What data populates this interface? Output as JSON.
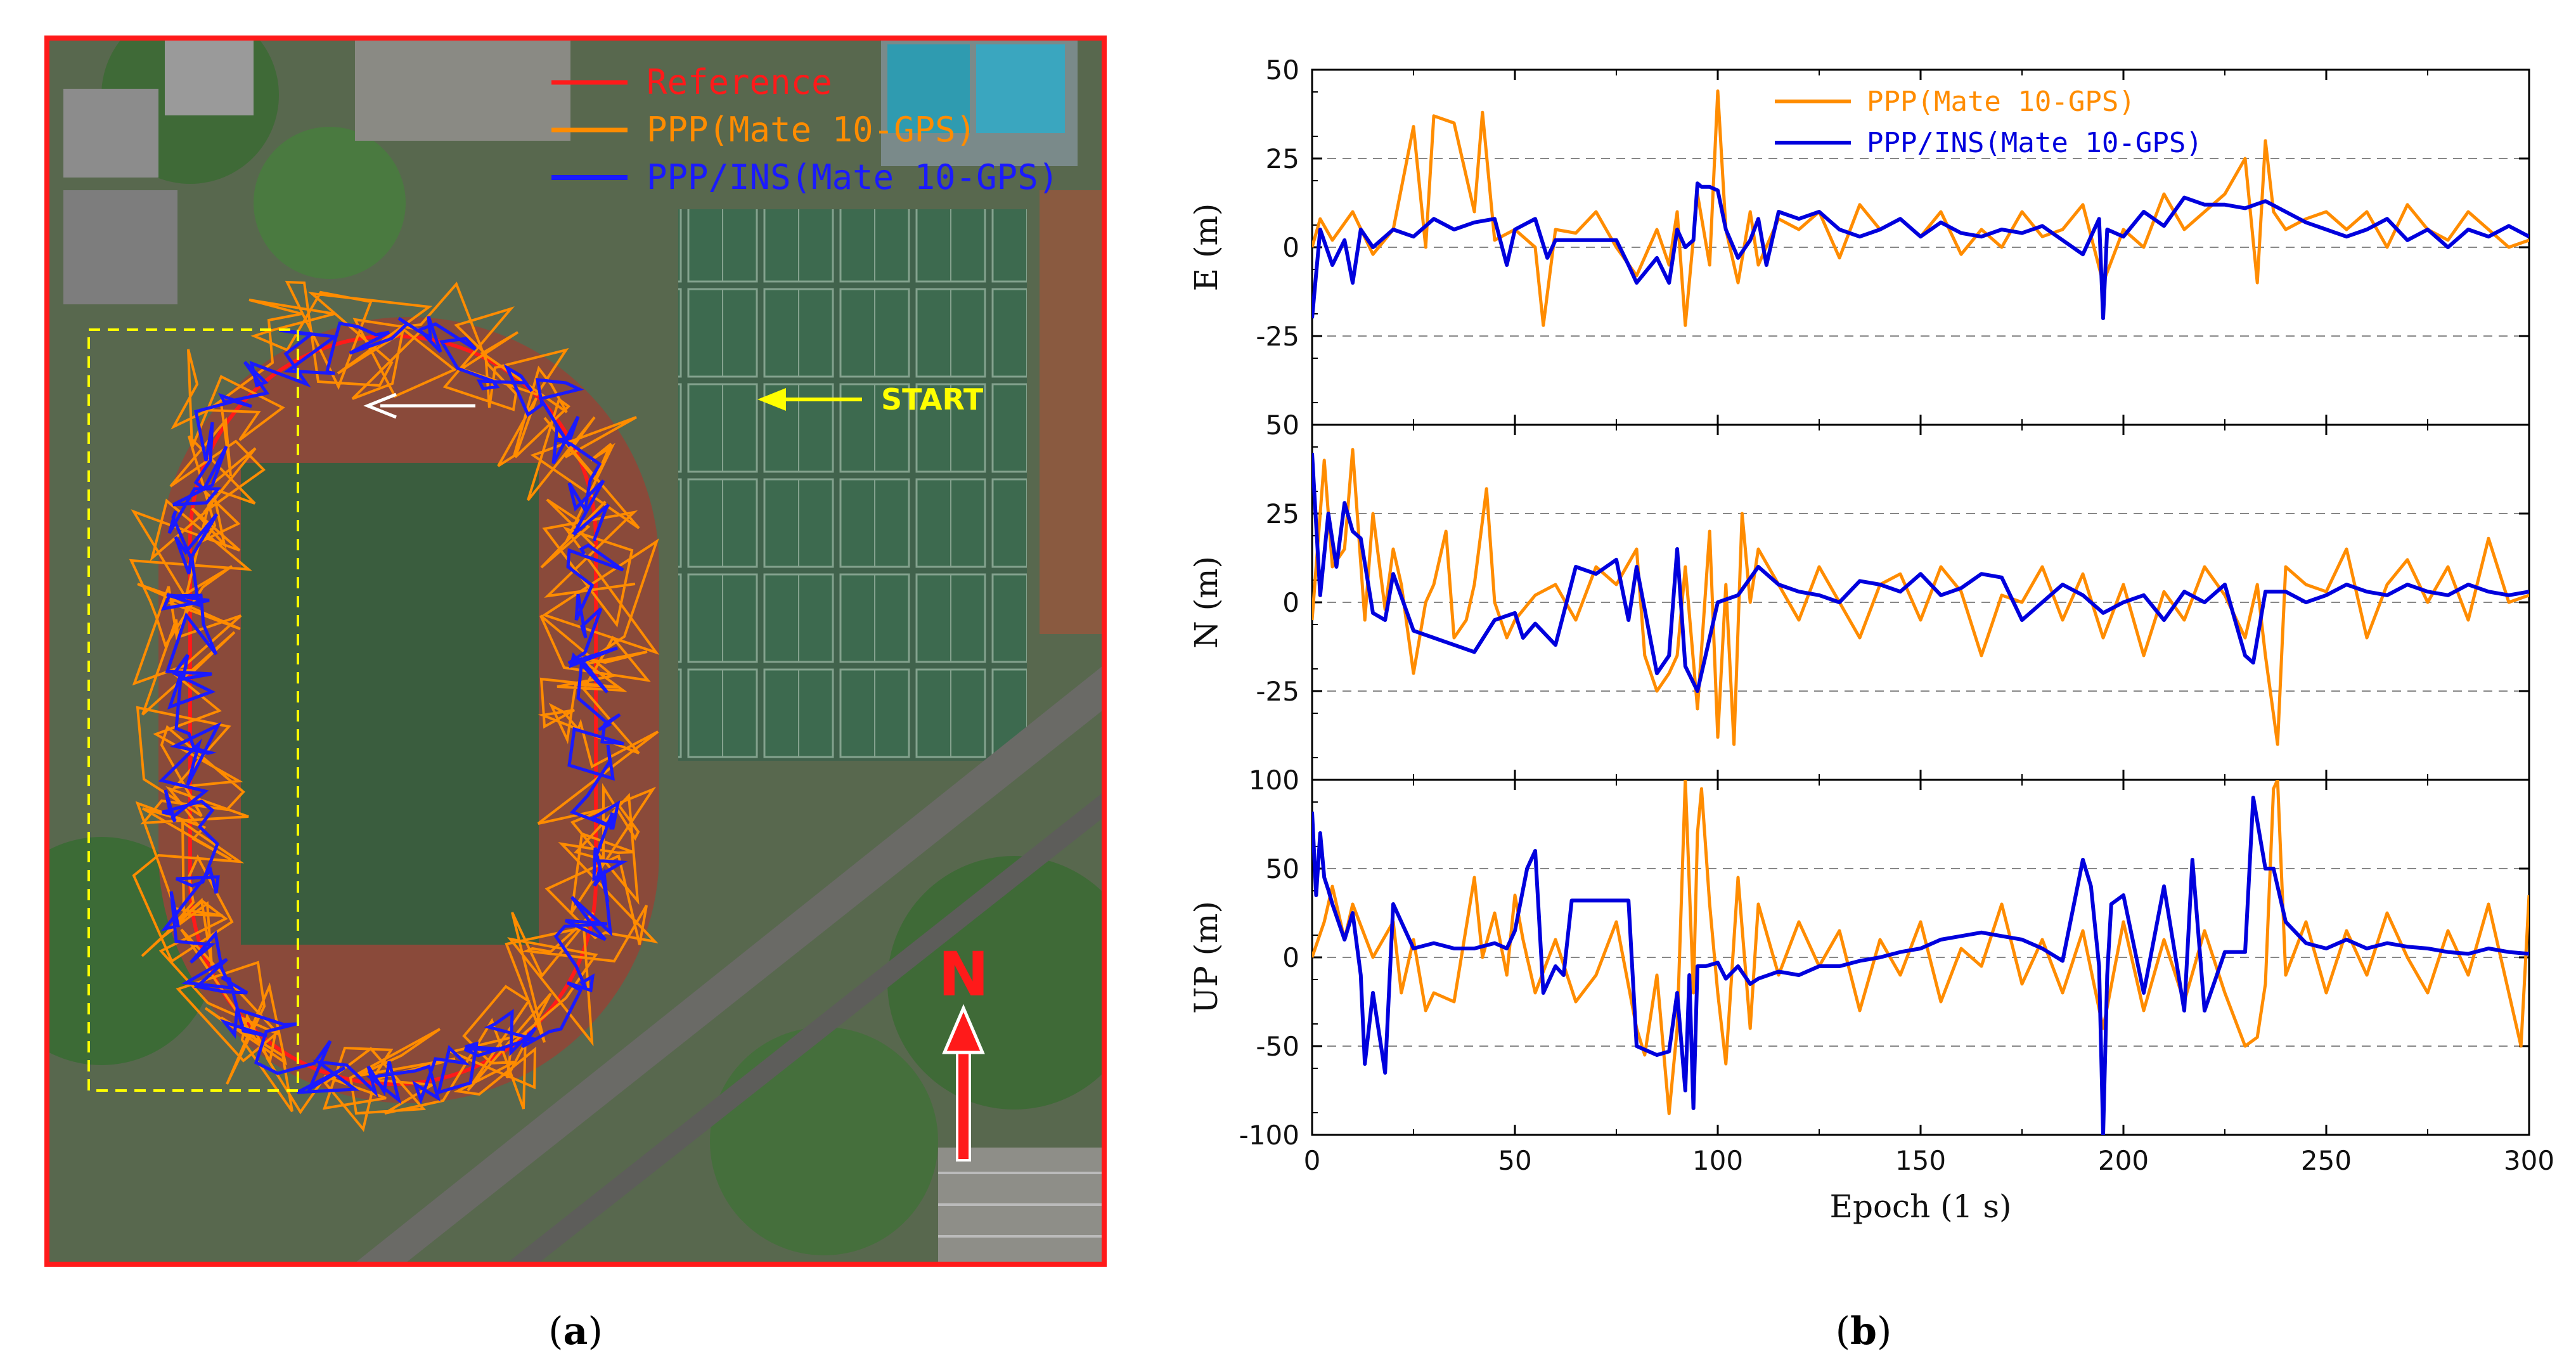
{
  "panel_a": {
    "label_letter": "a",
    "legend": [
      {
        "name": "Reference",
        "color": "#ff1a1a"
      },
      {
        "name": "PPP(Mate 10-GPS)",
        "color": "#ff8c00"
      },
      {
        "name": "PPP/INS(Mate 10-GPS)",
        "color": "#1a1aff"
      }
    ],
    "start_label": "START",
    "north_label": "N"
  },
  "panel_b": {
    "label_letter": "b"
  },
  "chart_data": [
    {
      "type": "line",
      "title": "",
      "ylabel": "E (m)",
      "xlabel": "",
      "xlim": [
        0,
        300
      ],
      "ylim": [
        -50,
        50
      ],
      "yticks": [
        "50",
        "25",
        "0",
        "-25",
        ""
      ],
      "grid_lines": [
        25,
        0,
        -25
      ],
      "series": [
        {
          "name": "PPP(Mate 10-GPS)",
          "color": "#ff8c00",
          "x": [
            0,
            2,
            5,
            10,
            15,
            20,
            25,
            28,
            30,
            35,
            40,
            42,
            45,
            50,
            55,
            57,
            60,
            65,
            70,
            75,
            80,
            85,
            88,
            90,
            92,
            95,
            98,
            100,
            102,
            105,
            108,
            110,
            115,
            120,
            125,
            130,
            135,
            140,
            145,
            150,
            155,
            160,
            165,
            170,
            175,
            180,
            185,
            190,
            195,
            200,
            205,
            210,
            215,
            220,
            225,
            230,
            233,
            235,
            237,
            240,
            245,
            250,
            255,
            260,
            265,
            270,
            275,
            280,
            285,
            290,
            295,
            300
          ],
          "y": [
            0,
            8,
            2,
            10,
            -2,
            5,
            34,
            0,
            37,
            35,
            10,
            38,
            2,
            5,
            0,
            -22,
            5,
            4,
            10,
            0,
            -8,
            5,
            -5,
            10,
            -22,
            15,
            -5,
            44,
            5,
            -10,
            10,
            -5,
            8,
            5,
            10,
            -3,
            12,
            5,
            8,
            3,
            10,
            -2,
            5,
            0,
            10,
            3,
            5,
            12,
            -10,
            5,
            0,
            15,
            5,
            10,
            15,
            25,
            -10,
            30,
            10,
            5,
            8,
            10,
            5,
            10,
            0,
            12,
            5,
            2,
            10,
            5,
            0,
            2
          ]
        },
        {
          "name": "PPP/INS(Mate 10-GPS)",
          "color": "#0000dd",
          "x": [
            0,
            2,
            5,
            8,
            10,
            12,
            15,
            20,
            25,
            30,
            35,
            40,
            45,
            48,
            50,
            55,
            58,
            60,
            65,
            70,
            75,
            78,
            80,
            85,
            88,
            90,
            92,
            94,
            95,
            96,
            98,
            100,
            102,
            105,
            108,
            110,
            112,
            115,
            120,
            125,
            130,
            135,
            140,
            145,
            150,
            155,
            160,
            165,
            170,
            175,
            180,
            185,
            190,
            194,
            195,
            196,
            200,
            205,
            210,
            215,
            220,
            225,
            230,
            235,
            240,
            245,
            250,
            255,
            260,
            265,
            270,
            275,
            280,
            285,
            290,
            295,
            300
          ],
          "y": [
            -20,
            5,
            -5,
            2,
            -10,
            5,
            0,
            5,
            3,
            8,
            5,
            7,
            8,
            -5,
            5,
            8,
            -3,
            2,
            2,
            2,
            2,
            -5,
            -10,
            -3,
            -10,
            5,
            0,
            2,
            18,
            17,
            17,
            16,
            5,
            -3,
            2,
            8,
            -5,
            10,
            8,
            10,
            5,
            3,
            5,
            8,
            3,
            7,
            4,
            3,
            5,
            4,
            6,
            2,
            -2,
            8,
            -20,
            5,
            3,
            10,
            6,
            14,
            12,
            12,
            11,
            13,
            10,
            7,
            5,
            3,
            5,
            8,
            2,
            5,
            0,
            5,
            3,
            6,
            3
          ]
        }
      ]
    },
    {
      "type": "line",
      "title": "",
      "ylabel": "N (m)",
      "xlabel": "",
      "xlim": [
        0,
        300
      ],
      "ylim": [
        -50,
        50
      ],
      "yticks": [
        "50",
        "25",
        "0",
        "-25",
        ""
      ],
      "grid_lines": [
        25,
        0,
        -25
      ],
      "series": [
        {
          "name": "PPP(Mate 10-GPS)",
          "color": "#ff8c00",
          "x": [
            0,
            3,
            5,
            8,
            10,
            13,
            15,
            18,
            20,
            22,
            25,
            28,
            30,
            33,
            35,
            38,
            40,
            43,
            45,
            48,
            50,
            55,
            60,
            65,
            70,
            75,
            80,
            82,
            85,
            88,
            90,
            92,
            95,
            98,
            100,
            102,
            104,
            106,
            108,
            110,
            115,
            120,
            125,
            130,
            135,
            140,
            145,
            150,
            155,
            160,
            165,
            170,
            175,
            180,
            185,
            190,
            195,
            200,
            205,
            210,
            215,
            220,
            225,
            230,
            233,
            235,
            238,
            240,
            245,
            250,
            255,
            260,
            265,
            270,
            275,
            280,
            285,
            290,
            295,
            300
          ],
          "y": [
            -5,
            40,
            10,
            15,
            43,
            -5,
            25,
            -2,
            15,
            5,
            -20,
            0,
            5,
            20,
            -10,
            -5,
            5,
            32,
            0,
            -10,
            -5,
            2,
            5,
            -5,
            10,
            5,
            15,
            -15,
            -25,
            -20,
            -15,
            10,
            -30,
            20,
            -38,
            5,
            -40,
            25,
            0,
            15,
            5,
            -5,
            10,
            0,
            -10,
            5,
            8,
            -5,
            10,
            3,
            -15,
            2,
            0,
            10,
            -5,
            8,
            -10,
            5,
            -15,
            3,
            -5,
            10,
            2,
            -10,
            5,
            -15,
            -40,
            10,
            5,
            3,
            15,
            -10,
            5,
            12,
            0,
            10,
            -5,
            18,
            0,
            2
          ]
        },
        {
          "name": "PPP/INS(Mate 10-GPS)",
          "color": "#0000dd",
          "x": [
            0,
            2,
            4,
            6,
            8,
            10,
            12,
            15,
            18,
            20,
            25,
            30,
            35,
            40,
            45,
            50,
            52,
            55,
            60,
            65,
            70,
            75,
            78,
            80,
            85,
            88,
            90,
            92,
            95,
            98,
            100,
            105,
            110,
            115,
            120,
            125,
            130,
            135,
            140,
            145,
            150,
            155,
            160,
            165,
            170,
            175,
            180,
            185,
            190,
            195,
            200,
            205,
            210,
            215,
            220,
            225,
            230,
            232,
            235,
            240,
            245,
            250,
            255,
            260,
            265,
            270,
            275,
            280,
            285,
            290,
            295,
            300
          ],
          "y": [
            42,
            2,
            25,
            10,
            28,
            20,
            18,
            -3,
            -5,
            8,
            -8,
            -10,
            -12,
            -14,
            -5,
            -3,
            -10,
            -6,
            -12,
            10,
            8,
            12,
            -5,
            10,
            -20,
            -15,
            15,
            -18,
            -25,
            -10,
            0,
            2,
            10,
            5,
            3,
            2,
            0,
            6,
            5,
            3,
            8,
            2,
            4,
            8,
            7,
            -5,
            0,
            5,
            2,
            -3,
            0,
            2,
            -5,
            3,
            0,
            5,
            -15,
            -17,
            3,
            3,
            0,
            2,
            5,
            3,
            2,
            5,
            3,
            2,
            5,
            3,
            2,
            3
          ]
        }
      ]
    },
    {
      "type": "line",
      "title": "",
      "ylabel": "UP (m)",
      "xlabel": "Epoch (1 s)",
      "xlim": [
        0,
        300
      ],
      "ylim": [
        -100,
        100
      ],
      "xticks": [
        "0",
        "50",
        "100",
        "150",
        "200",
        "250",
        "300"
      ],
      "yticks": [
        "100",
        "50",
        "0",
        "-50",
        "-100"
      ],
      "grid_lines": [
        50,
        0,
        -50
      ],
      "series": [
        {
          "name": "PPP(Mate 10-GPS)",
          "color": "#ff8c00",
          "x": [
            0,
            3,
            5,
            8,
            10,
            15,
            20,
            22,
            25,
            28,
            30,
            35,
            40,
            42,
            45,
            48,
            50,
            52,
            55,
            60,
            65,
            70,
            75,
            80,
            82,
            85,
            88,
            90,
            92,
            94,
            95,
            96,
            98,
            100,
            102,
            105,
            108,
            110,
            115,
            120,
            125,
            130,
            135,
            140,
            145,
            150,
            155,
            160,
            165,
            170,
            175,
            180,
            185,
            190,
            195,
            200,
            205,
            210,
            215,
            220,
            225,
            230,
            233,
            235,
            237,
            238,
            240,
            245,
            250,
            255,
            260,
            265,
            270,
            275,
            280,
            285,
            290,
            295,
            298,
            300
          ],
          "y": [
            0,
            20,
            40,
            10,
            30,
            0,
            20,
            -20,
            10,
            -30,
            -20,
            -25,
            45,
            0,
            25,
            -10,
            35,
            10,
            -20,
            10,
            -25,
            -10,
            20,
            -40,
            -55,
            -10,
            -88,
            -40,
            100,
            -20,
            70,
            95,
            30,
            -20,
            -60,
            45,
            -40,
            30,
            -10,
            20,
            -5,
            15,
            -30,
            10,
            -10,
            20,
            -25,
            5,
            -5,
            30,
            -15,
            10,
            -20,
            15,
            -40,
            20,
            -30,
            10,
            -25,
            15,
            -20,
            -50,
            -45,
            -15,
            95,
            100,
            -10,
            20,
            -20,
            15,
            -10,
            25,
            0,
            -20,
            15,
            -10,
            30,
            -20,
            -50,
            35
          ]
        },
        {
          "name": "PPP/INS(Mate 10-GPS)",
          "color": "#0000dd",
          "x": [
            0,
            1,
            2,
            3,
            4,
            5,
            8,
            10,
            12,
            13,
            15,
            18,
            20,
            25,
            30,
            35,
            40,
            45,
            48,
            50,
            53,
            55,
            57,
            60,
            62,
            64,
            66,
            70,
            75,
            78,
            80,
            82,
            85,
            88,
            90,
            92,
            93,
            94,
            95,
            97,
            100,
            102,
            105,
            108,
            110,
            115,
            120,
            125,
            130,
            135,
            140,
            145,
            150,
            155,
            160,
            165,
            170,
            175,
            180,
            185,
            190,
            192,
            194,
            195,
            196,
            197,
            200,
            205,
            210,
            215,
            217,
            220,
            225,
            230,
            232,
            235,
            237,
            240,
            245,
            250,
            255,
            260,
            265,
            270,
            275,
            280,
            285,
            290,
            295,
            300
          ],
          "y": [
            82,
            35,
            70,
            45,
            38,
            30,
            10,
            25,
            -10,
            -60,
            -20,
            -65,
            30,
            5,
            8,
            5,
            5,
            8,
            5,
            15,
            50,
            60,
            -20,
            -5,
            -10,
            32,
            32,
            32,
            32,
            32,
            -50,
            -52,
            -55,
            -53,
            -20,
            -75,
            -10,
            -85,
            -5,
            -5,
            -3,
            -12,
            -5,
            -15,
            -12,
            -8,
            -10,
            -5,
            -5,
            -2,
            0,
            3,
            5,
            10,
            12,
            14,
            12,
            10,
            5,
            -2,
            55,
            40,
            -5,
            -100,
            -10,
            30,
            35,
            -20,
            40,
            -30,
            55,
            -30,
            3,
            3,
            90,
            50,
            50,
            20,
            8,
            5,
            10,
            5,
            8,
            6,
            5,
            3,
            2,
            5,
            3,
            2
          ]
        }
      ]
    }
  ]
}
